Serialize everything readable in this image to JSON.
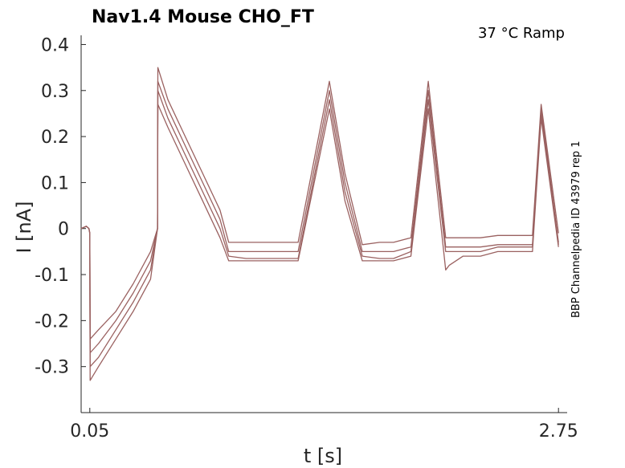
{
  "chart_data": {
    "type": "line",
    "title": "Nav1.4  Mouse  CHO_FT",
    "annotation": "37 °C  Ramp",
    "side_label": "BBP Channelpedia ID 43979 rep 1",
    "xlabel": "t [s]",
    "ylabel": "I [nA]",
    "xlim": [
      0.0,
      2.8
    ],
    "ylim": [
      -0.4,
      0.42
    ],
    "x_ticks": [
      0.05,
      2.75
    ],
    "x_tick_labels": [
      "0.05",
      "2.75"
    ],
    "y_ticks": [
      0.4,
      0.3,
      0.2,
      0.1,
      0,
      -0.1,
      -0.2,
      -0.3
    ],
    "y_tick_labels": [
      "0.4",
      "0.3",
      "0.2",
      "0.1",
      "0",
      "-0.1",
      "-0.2",
      "-0.3"
    ],
    "line_color": "#9a6160",
    "grid": false,
    "series": [
      {
        "x": [
          0.0,
          0.03,
          0.045,
          0.05,
          0.052,
          0.1,
          0.2,
          0.3,
          0.4,
          0.44,
          0.442,
          0.5,
          0.6,
          0.7,
          0.8,
          0.85,
          0.95,
          1.1,
          1.25,
          1.43,
          1.52,
          1.62,
          1.72,
          1.8,
          1.9,
          2.0,
          2.1,
          2.12,
          2.2,
          2.3,
          2.4,
          2.48,
          2.52,
          2.56,
          2.6,
          2.65,
          2.75
        ],
        "y": [
          0.0,
          0.005,
          0.0,
          -0.01,
          -0.24,
          -0.22,
          -0.18,
          -0.12,
          -0.05,
          0.0,
          0.35,
          0.28,
          0.2,
          0.12,
          0.04,
          -0.03,
          -0.03,
          -0.03,
          -0.03,
          0.32,
          0.12,
          -0.035,
          -0.03,
          -0.03,
          -0.02,
          0.32,
          -0.02,
          -0.02,
          -0.02,
          -0.02,
          -0.015,
          -0.015,
          -0.015,
          -0.015,
          -0.015,
          0.27,
          -0.01
        ]
      },
      {
        "x": [
          0.0,
          0.03,
          0.045,
          0.05,
          0.052,
          0.1,
          0.2,
          0.3,
          0.4,
          0.44,
          0.442,
          0.5,
          0.6,
          0.7,
          0.8,
          0.85,
          0.95,
          1.1,
          1.25,
          1.43,
          1.52,
          1.62,
          1.72,
          1.8,
          1.9,
          2.0,
          2.1,
          2.12,
          2.2,
          2.3,
          2.4,
          2.48,
          2.52,
          2.56,
          2.6,
          2.65,
          2.75
        ],
        "y": [
          0.0,
          0.005,
          0.0,
          -0.01,
          -0.27,
          -0.25,
          -0.2,
          -0.14,
          -0.07,
          0.0,
          0.32,
          0.26,
          0.18,
          0.1,
          0.02,
          -0.05,
          -0.05,
          -0.05,
          -0.05,
          0.3,
          0.1,
          -0.05,
          -0.05,
          -0.05,
          -0.04,
          0.3,
          -0.04,
          -0.04,
          -0.04,
          -0.04,
          -0.035,
          -0.035,
          -0.035,
          -0.035,
          -0.035,
          0.26,
          -0.03
        ]
      },
      {
        "x": [
          0.0,
          0.03,
          0.045,
          0.05,
          0.052,
          0.1,
          0.2,
          0.3,
          0.4,
          0.44,
          0.442,
          0.5,
          0.6,
          0.7,
          0.8,
          0.85,
          0.95,
          1.1,
          1.25,
          1.43,
          1.52,
          1.62,
          1.72,
          1.8,
          1.9,
          2.0,
          2.1,
          2.12,
          2.2,
          2.3,
          2.4,
          2.48,
          2.52,
          2.56,
          2.6,
          2.65,
          2.75
        ],
        "y": [
          0.0,
          0.005,
          0.0,
          -0.01,
          -0.3,
          -0.28,
          -0.22,
          -0.16,
          -0.09,
          0.0,
          0.3,
          0.24,
          0.16,
          0.08,
          0.0,
          -0.06,
          -0.065,
          -0.065,
          -0.065,
          0.28,
          0.08,
          -0.06,
          -0.065,
          -0.065,
          -0.05,
          0.28,
          -0.05,
          -0.05,
          -0.05,
          -0.05,
          -0.04,
          -0.04,
          -0.04,
          -0.04,
          -0.04,
          0.25,
          -0.035
        ]
      },
      {
        "x": [
          0.0,
          0.03,
          0.045,
          0.05,
          0.052,
          0.1,
          0.2,
          0.3,
          0.4,
          0.44,
          0.442,
          0.5,
          0.6,
          0.7,
          0.8,
          0.85,
          0.95,
          1.1,
          1.25,
          1.43,
          1.52,
          1.62,
          1.72,
          1.8,
          1.9,
          2.0,
          2.1,
          2.12,
          2.2,
          2.3,
          2.4,
          2.48,
          2.52,
          2.56,
          2.6,
          2.65,
          2.75
        ],
        "y": [
          0.0,
          0.005,
          0.0,
          -0.01,
          -0.33,
          -0.3,
          -0.24,
          -0.18,
          -0.11,
          0.0,
          0.27,
          0.22,
          0.14,
          0.06,
          -0.02,
          -0.07,
          -0.07,
          -0.07,
          -0.07,
          0.26,
          0.06,
          -0.07,
          -0.07,
          -0.07,
          -0.06,
          0.26,
          -0.09,
          -0.08,
          -0.06,
          -0.06,
          -0.05,
          -0.05,
          -0.05,
          -0.05,
          -0.05,
          0.24,
          -0.04
        ]
      }
    ]
  }
}
